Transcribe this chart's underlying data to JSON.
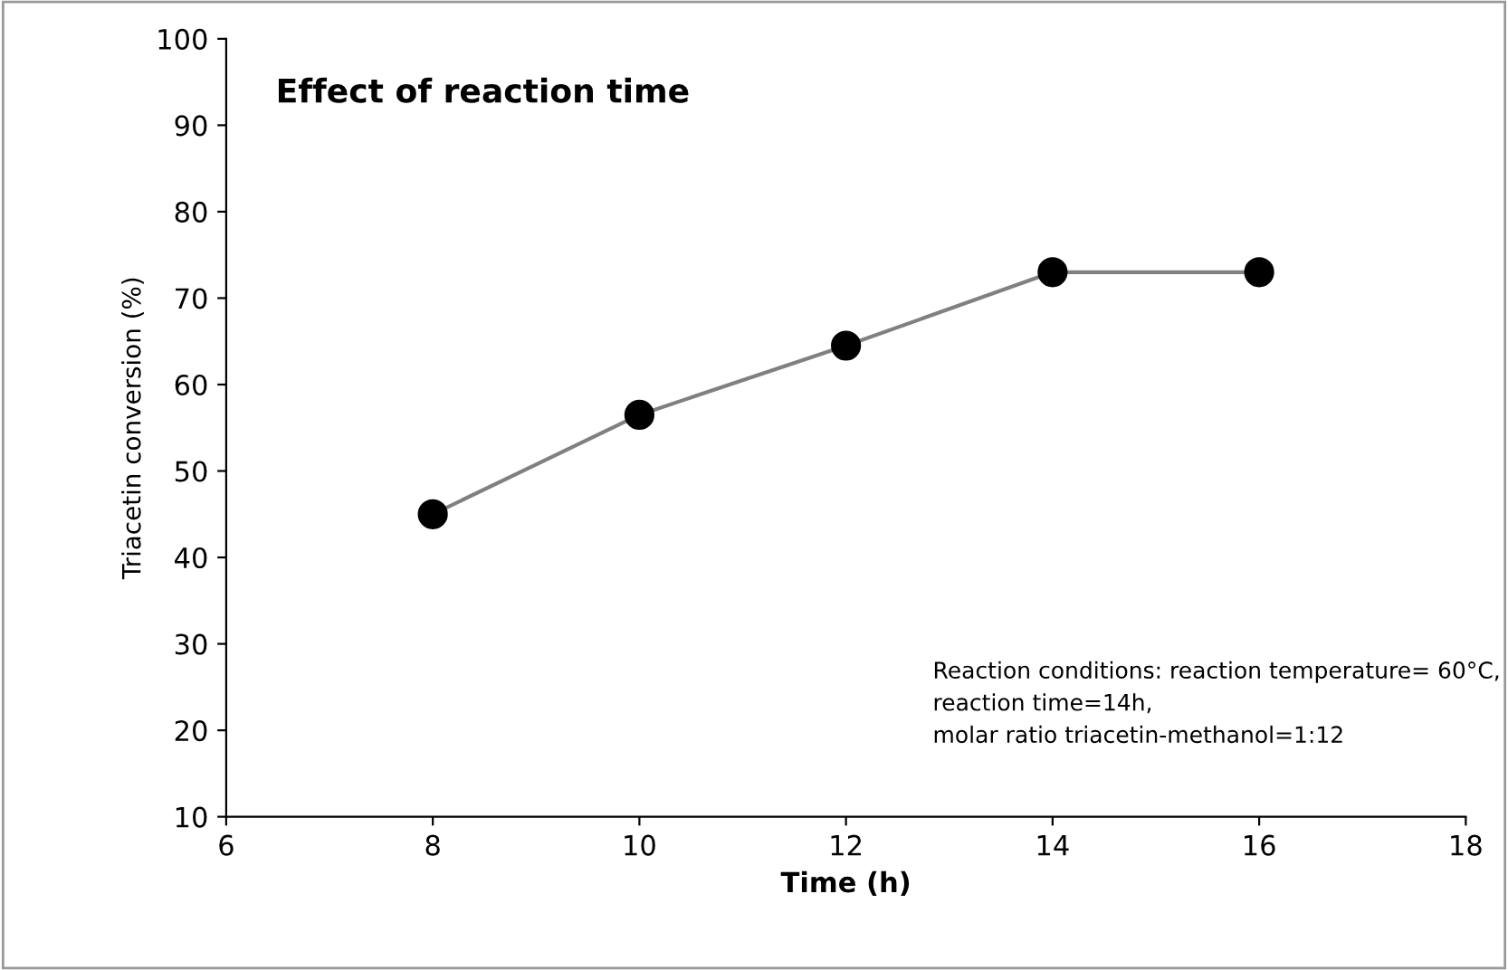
{
  "chart_data": {
    "type": "line",
    "title": "Effect of reaction time",
    "xlabel": "Time (h)",
    "ylabel": "Triacetin conversion (%)",
    "x": [
      8,
      10,
      12,
      14,
      16
    ],
    "series": [
      {
        "color": "#808080",
        "colors": [
          "#000000",
          "#000000",
          "#000000",
          "#000000",
          "#000000"
        ],
        "values": [
          45,
          56.5,
          64.5,
          73,
          73
        ]
      }
    ],
    "xlim": [
      6,
      18
    ],
    "xticks": [
      6,
      8,
      10,
      12,
      14,
      16,
      18
    ],
    "ylim": [
      10,
      100
    ],
    "yticks": [
      10,
      20,
      30,
      40,
      50,
      60,
      70,
      80,
      90,
      100
    ],
    "marker": "circle",
    "line_style": "solid",
    "grid": false,
    "legend": false,
    "annotations": [
      "Reaction conditions: reaction temperature= 60°C,\nreaction time=14h,\nmolar ratio triacetin-methanol=1:12"
    ]
  }
}
